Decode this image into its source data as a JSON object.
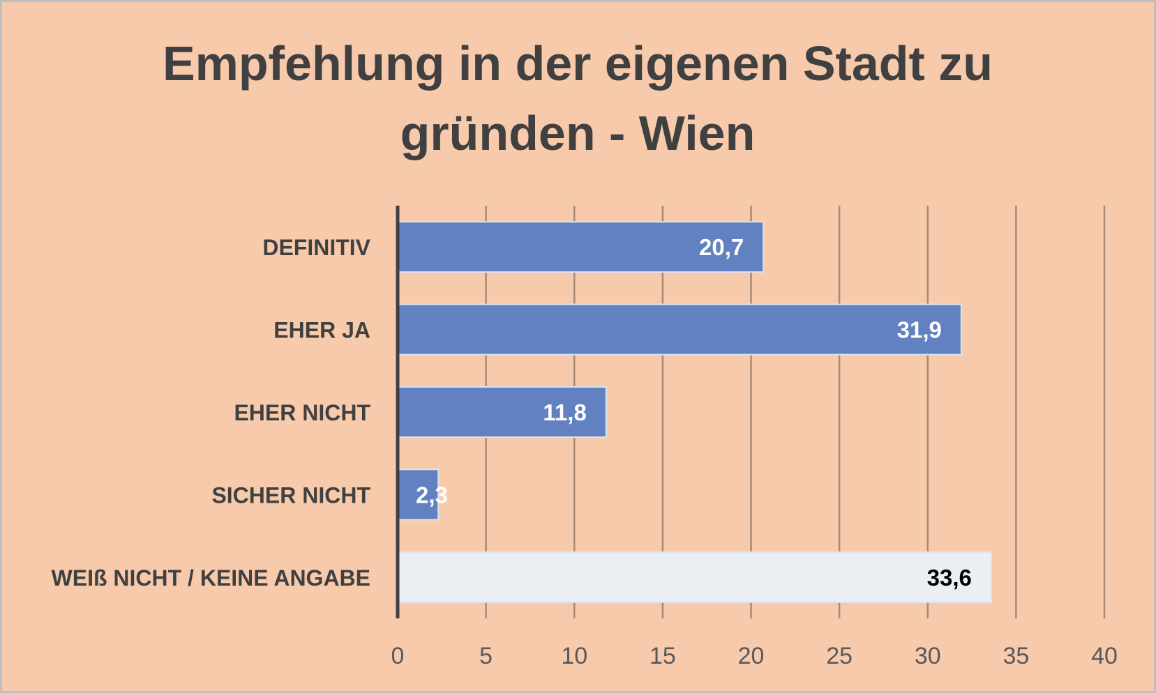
{
  "chart_data": {
    "type": "bar",
    "orientation": "horizontal",
    "title": "Empfehlung in der eigenen Stadt zu gründen - Wien",
    "title_lines": [
      "Empfehlung in der eigenen Stadt zu",
      "gründen - Wien"
    ],
    "categories": [
      "DEFINITIV",
      "EHER JA",
      "EHER NICHT",
      "SICHER NICHT",
      "WEIß NICHT / KEINE ANGABE"
    ],
    "values": [
      20.7,
      31.9,
      11.8,
      2.3,
      33.6
    ],
    "value_labels": [
      "20,7",
      "31,9",
      "11,8",
      "2,3",
      "33,6"
    ],
    "xlim": [
      0,
      40
    ],
    "xticks": [
      "0",
      "5",
      "10",
      "15",
      "20",
      "25",
      "30",
      "35",
      "40"
    ],
    "xlabel": "",
    "ylabel": "",
    "grid": "vertical",
    "legend": "none",
    "colors": {
      "background": "#F8CAAC",
      "bar": "#6281C0",
      "bar_highlight": "#EBEEF3",
      "text": "#404040",
      "gridline": "#A68A78",
      "axis": "#404040"
    }
  }
}
